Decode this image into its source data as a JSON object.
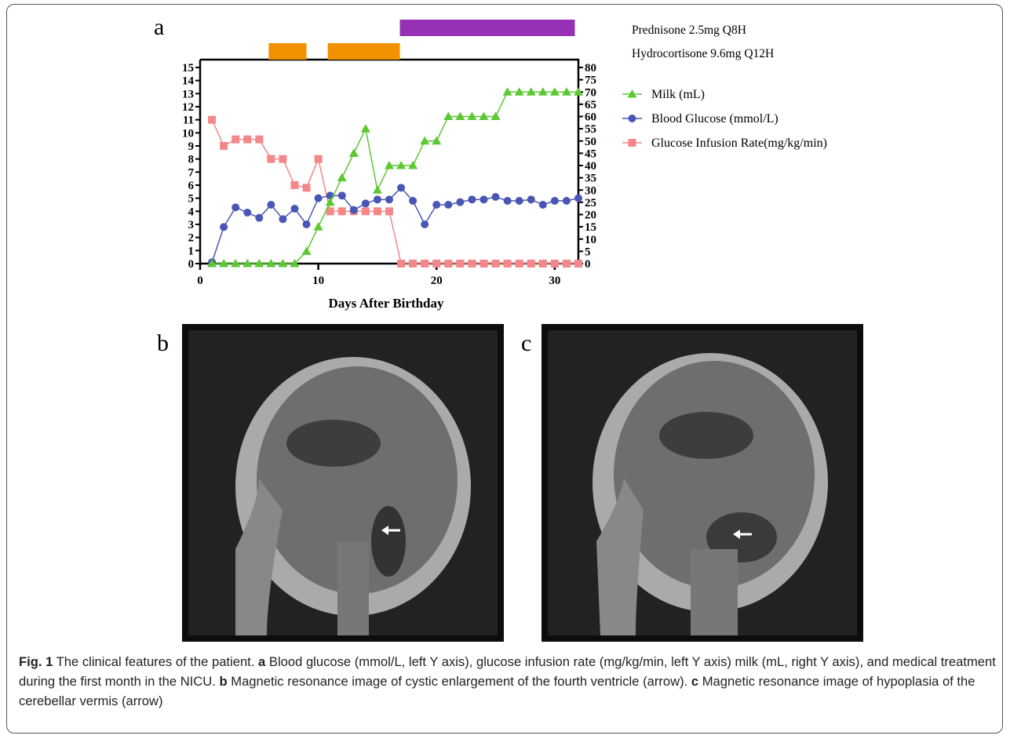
{
  "chart_data": {
    "type": "line",
    "panel_label": "a",
    "x_label": "Days After Birthday",
    "xlim": [
      0,
      32
    ],
    "xticks": [
      0,
      10,
      20,
      30
    ],
    "ylim": [
      0,
      15
    ],
    "yticks": [
      0,
      1,
      2,
      3,
      4,
      5,
      6,
      7,
      8,
      9,
      10,
      11,
      12,
      13,
      14,
      15
    ],
    "y2lim": [
      0,
      80
    ],
    "y2ticks": [
      0,
      5,
      10,
      15,
      20,
      25,
      30,
      35,
      40,
      45,
      50,
      55,
      60,
      65,
      70,
      75,
      80
    ],
    "x": [
      1,
      2,
      3,
      4,
      5,
      6,
      7,
      8,
      9,
      10,
      11,
      12,
      13,
      14,
      15,
      16,
      17,
      18,
      19,
      20,
      21,
      22,
      23,
      24,
      25,
      26,
      27,
      28,
      29,
      30,
      31,
      32
    ],
    "series": [
      {
        "name": "Milk (mL)",
        "color": "#5cc834",
        "marker": "triangle",
        "axis": "y2",
        "values": [
          0,
          0,
          0,
          0,
          0,
          0,
          0,
          0,
          5,
          15,
          25,
          35,
          45,
          55,
          30,
          40,
          40,
          40,
          50,
          50,
          60,
          60,
          60,
          60,
          60,
          70,
          70,
          70,
          70,
          70,
          70,
          70
        ]
      },
      {
        "name": "Blood Glucose (mmol/L)",
        "color": "#4a56b4",
        "marker": "circle",
        "values": [
          0.1,
          2.8,
          4.3,
          3.9,
          3.5,
          4.5,
          3.4,
          4.2,
          3.0,
          5.0,
          5.2,
          5.2,
          4.1,
          4.6,
          4.9,
          4.9,
          5.8,
          4.8,
          3.0,
          4.5,
          4.5,
          4.7,
          4.9,
          4.9,
          5.1,
          4.8,
          4.8,
          4.9,
          4.5,
          4.8,
          4.8,
          5.0
        ]
      },
      {
        "name": "Glucose Infusion Rate(mg/kg/min)",
        "color": "#f4878a",
        "marker": "square",
        "values": [
          11,
          9,
          9.5,
          9.5,
          9.5,
          8,
          8,
          6,
          5.8,
          8,
          4,
          4,
          4,
          4,
          4,
          4,
          0,
          0,
          0,
          0,
          0,
          0,
          0,
          0,
          0,
          0,
          0,
          0,
          0,
          0,
          0,
          0
        ]
      }
    ],
    "treatments": [
      {
        "name": "Prednisone 2.5mg Q8H",
        "color": "#9630b4",
        "periods": [
          [
            16.9,
            31.7
          ]
        ]
      },
      {
        "name": "Hydrocortisone 9.6mg Q12H",
        "color": "#f39200",
        "periods": [
          [
            5.8,
            9.0
          ],
          [
            10.8,
            16.9
          ]
        ]
      }
    ]
  },
  "panel_labels": [
    "b",
    "c"
  ],
  "caption": {
    "label": "Fig. 1",
    "intro": "The clinical features of the patient.",
    "items": [
      {
        "letter": "a",
        "text": "Blood glucose (mmol/L, left Y axis), glucose infusion rate (mg/kg/min, left Y axis) milk (mL, right Y axis), and medical treatment during the first month in the NICU."
      },
      {
        "letter": "b",
        "text": "Magnetic resonance image of cystic enlargement of the fourth ventricle (arrow)."
      },
      {
        "letter": "c",
        "text": "Magnetic resonance image of hypoplasia of the cerebellar vermis (arrow)"
      }
    ]
  }
}
